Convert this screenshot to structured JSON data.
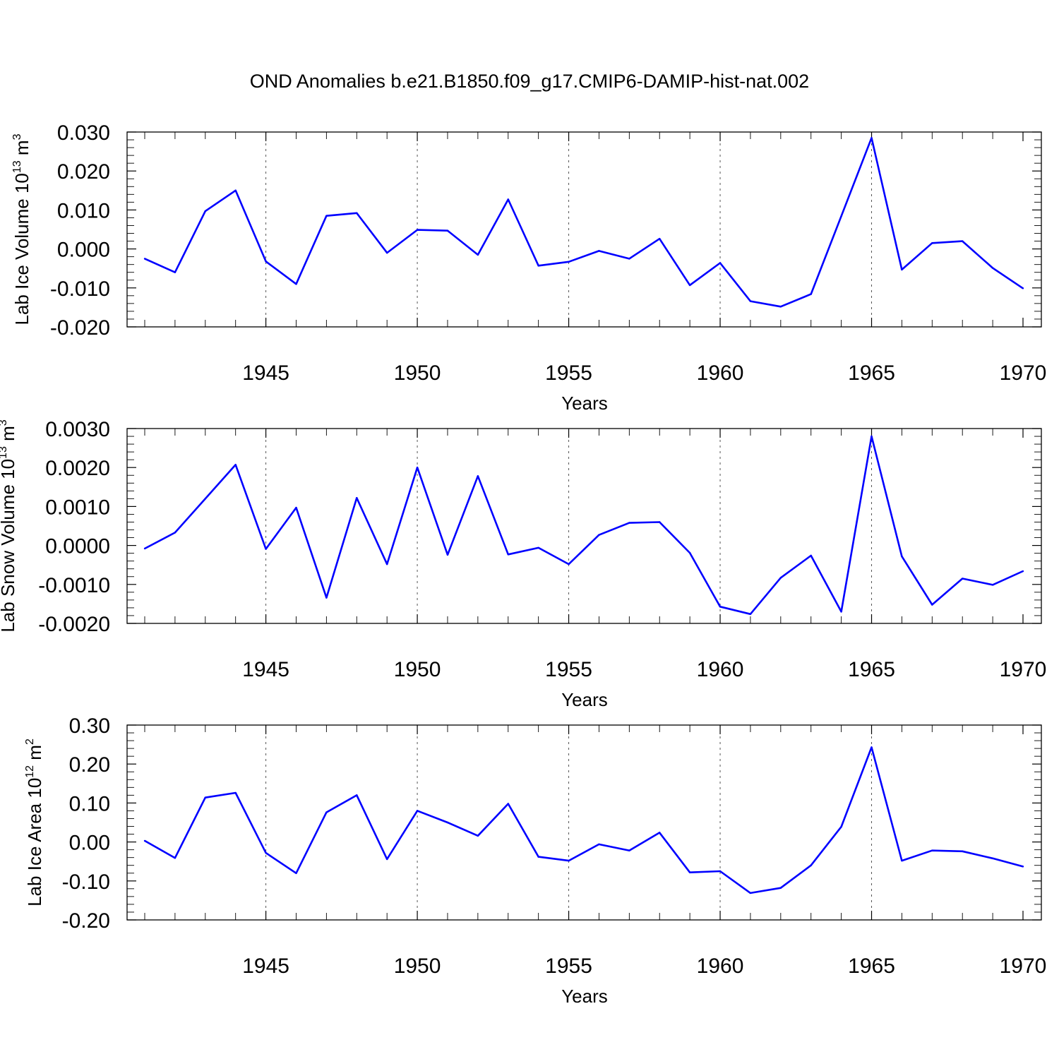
{
  "title": "OND Anomalies b.e21.B1850.f09_g17.CMIP6-DAMIP-hist-nat.002",
  "colors": {
    "series": "#0000ff",
    "grid": "#555555",
    "axis": "#000000"
  },
  "chart_data": [
    {
      "type": "line",
      "xlabel": "Years",
      "ylabel": "Lab Ice Volume 10",
      "ylabel_exp": "13",
      "ylabel_unit": "m",
      "ylabel_unit_exp": "3",
      "xlim": [
        1941,
        1970
      ],
      "ylim": [
        -0.02,
        0.03
      ],
      "yticks": [
        "0.030",
        "0.020",
        "0.010",
        "0.000",
        "-0.010",
        "-0.020"
      ],
      "ytick_values": [
        0.03,
        0.02,
        0.01,
        0.0,
        -0.01,
        -0.02
      ],
      "xticks": [
        1945,
        1950,
        1955,
        1960,
        1965,
        1970
      ],
      "grid_x": [
        1945,
        1950,
        1955,
        1960,
        1965
      ],
      "x": [
        1941,
        1942,
        1943,
        1944,
        1945,
        1946,
        1947,
        1948,
        1949,
        1950,
        1951,
        1952,
        1953,
        1954,
        1955,
        1956,
        1957,
        1958,
        1959,
        1960,
        1961,
        1962,
        1963,
        1964,
        1965,
        1966,
        1967,
        1968,
        1969,
        1970
      ],
      "y": [
        -0.0025,
        -0.006,
        0.0097,
        0.015,
        -0.0032,
        -0.009,
        0.0085,
        0.0092,
        -0.001,
        0.0049,
        0.0047,
        -0.0015,
        0.0127,
        -0.0043,
        -0.0033,
        -0.0005,
        -0.0025,
        0.0026,
        -0.0093,
        -0.0036,
        -0.0134,
        -0.0148,
        -0.0116,
        0.0084,
        0.0285,
        -0.0053,
        0.0015,
        0.002,
        -0.0049,
        -0.0101
      ]
    },
    {
      "type": "line",
      "xlabel": "Years",
      "ylabel": "Lab Snow Volume 10",
      "ylabel_exp": "13",
      "ylabel_unit": "m",
      "ylabel_unit_exp": "3",
      "xlim": [
        1941,
        1970
      ],
      "ylim": [
        -0.002,
        0.003
      ],
      "yticks": [
        "0.0030",
        "0.0020",
        "0.0010",
        "0.0000",
        "-0.0010",
        "-0.0020"
      ],
      "ytick_values": [
        0.003,
        0.002,
        0.001,
        0.0,
        -0.001,
        -0.002
      ],
      "xticks": [
        1945,
        1950,
        1955,
        1960,
        1965,
        1970
      ],
      "grid_x": [
        1945,
        1950,
        1955,
        1960,
        1965
      ],
      "x": [
        1941,
        1942,
        1943,
        1944,
        1945,
        1946,
        1947,
        1948,
        1949,
        1950,
        1951,
        1952,
        1953,
        1954,
        1955,
        1956,
        1957,
        1958,
        1959,
        1960,
        1961,
        1962,
        1963,
        1964,
        1965,
        1966,
        1967,
        1968,
        1969,
        1970
      ],
      "y": [
        -8e-05,
        0.00033,
        0.0012,
        0.00207,
        -9e-05,
        0.00097,
        -0.00134,
        0.00122,
        -0.00048,
        0.002,
        -0.00024,
        0.00178,
        -0.00023,
        -6e-05,
        -0.00048,
        0.00027,
        0.00058,
        0.0006,
        -0.00019,
        -0.00157,
        -0.00176,
        -0.00083,
        -0.00026,
        -0.0017,
        0.0028,
        -0.00028,
        -0.00152,
        -0.00085,
        -0.00101,
        -0.00066
      ]
    },
    {
      "type": "line",
      "xlabel": "Years",
      "ylabel": "Lab Ice Area 10",
      "ylabel_exp": "12",
      "ylabel_unit": "m",
      "ylabel_unit_exp": "2",
      "xlim": [
        1941,
        1970
      ],
      "ylim": [
        -0.2,
        0.3
      ],
      "yticks": [
        "0.30",
        "0.20",
        "0.10",
        "0.00",
        "-0.10",
        "-0.20"
      ],
      "ytick_values": [
        0.3,
        0.2,
        0.1,
        0.0,
        -0.1,
        -0.2
      ],
      "xticks": [
        1945,
        1950,
        1955,
        1960,
        1965,
        1970
      ],
      "grid_x": [
        1945,
        1950,
        1955,
        1960,
        1965
      ],
      "x": [
        1941,
        1942,
        1943,
        1944,
        1945,
        1946,
        1947,
        1948,
        1949,
        1950,
        1951,
        1952,
        1953,
        1954,
        1955,
        1956,
        1957,
        1958,
        1959,
        1960,
        1961,
        1962,
        1963,
        1964,
        1965,
        1966,
        1967,
        1968,
        1969,
        1970
      ],
      "y": [
        0.003,
        -0.041,
        0.114,
        0.126,
        -0.028,
        -0.08,
        0.076,
        0.12,
        -0.044,
        0.08,
        0.05,
        0.016,
        0.098,
        -0.038,
        -0.048,
        -0.006,
        -0.022,
        0.024,
        -0.078,
        -0.075,
        -0.131,
        -0.118,
        -0.06,
        0.039,
        0.243,
        -0.048,
        -0.022,
        -0.024,
        -0.042,
        -0.063
      ]
    }
  ]
}
